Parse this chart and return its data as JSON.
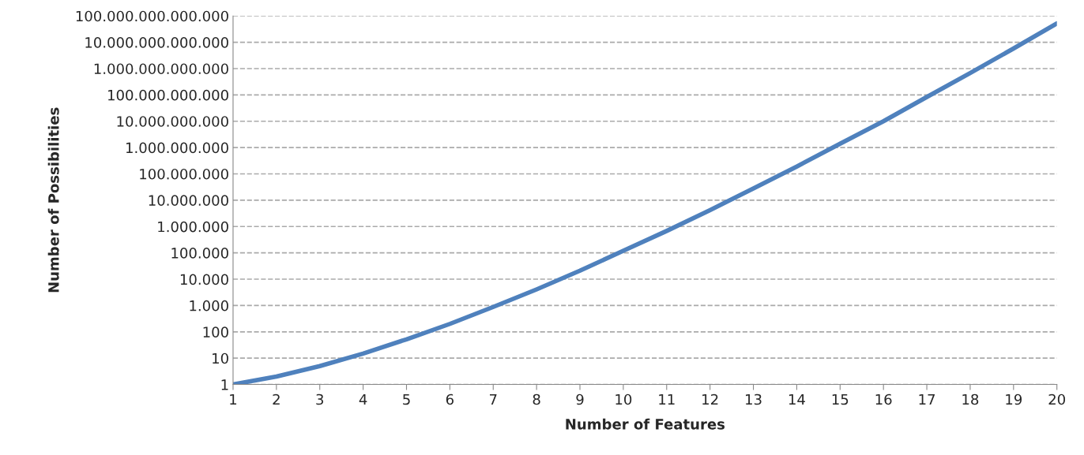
{
  "chart_data": {
    "type": "line",
    "xlabel": "Number of Features",
    "ylabel": "Number of Possibilities",
    "x": [
      1,
      2,
      3,
      4,
      5,
      6,
      7,
      8,
      9,
      10,
      11,
      12,
      13,
      14,
      15,
      16,
      17,
      18,
      19,
      20
    ],
    "series": [
      {
        "color": "#4f81bd",
        "values": [
          1,
          2,
          5,
          15,
          52,
          200,
          880,
          4100,
          21000,
          120000,
          680000,
          4200000,
          28000000,
          190000000,
          1400000000,
          10000000000,
          83000000000,
          680000000000,
          5800000000000,
          52000000000000
        ]
      }
    ],
    "log": "y",
    "xlim": [
      1,
      20
    ],
    "xticks": [
      1,
      2,
      3,
      4,
      5,
      6,
      7,
      8,
      9,
      10,
      11,
      12,
      13,
      14,
      15,
      16,
      17,
      18,
      19,
      20
    ],
    "ylim": [
      1,
      100000000000000
    ],
    "yticks": [
      1,
      10,
      100,
      {
        "value": 1000,
        "label": "1.000"
      },
      {
        "value": 10000,
        "label": "10.000"
      },
      {
        "value": 100000,
        "label": "100.000"
      },
      {
        "value": 1000000,
        "label": "1.000.000"
      },
      {
        "value": 10000000,
        "label": "10.000.000"
      },
      {
        "value": 100000000,
        "label": "100.000.000"
      },
      {
        "value": 1000000000,
        "label": "1.000.000.000"
      },
      {
        "value": 10000000000,
        "label": "10.000.000.000"
      },
      {
        "value": 100000000000,
        "label": "100.000.000.000"
      },
      {
        "value": 1000000000000,
        "label": "1.000.000.000.000"
      },
      {
        "value": 10000000000000,
        "label": "10.000.000.000.000"
      },
      {
        "value": 100000000000000,
        "label": "100.000.000.000.000"
      }
    ],
    "grid": "y",
    "marker": "none",
    "line_style": "solid"
  }
}
